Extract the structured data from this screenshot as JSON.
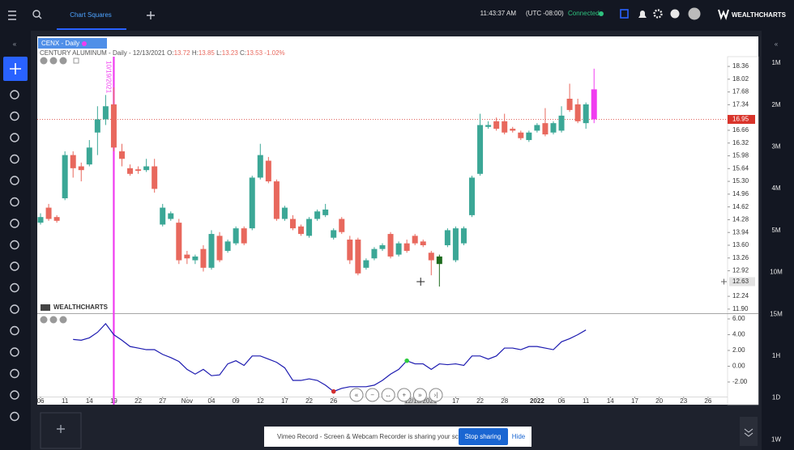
{
  "header": {
    "tab": "Chart Squares",
    "time": "11:43:37 AM",
    "timezone": "(UTC -08:00)",
    "status": "Connected",
    "brand": "WEALTHCHARTS"
  },
  "symbol_tab": "CENX - Daily",
  "info": {
    "name": "CENTURY ALUMINUM - Daily - 12/13/2021",
    "open_label": "O:",
    "open": "13.72",
    "high_label": "H:",
    "high": "13.85",
    "low_label": "L:",
    "low": "13.23",
    "close_label": "C:",
    "close": "13.53",
    "change": "-1.02%"
  },
  "chart": {
    "type": "candlestick",
    "watermark": "WEALTHCHARTS",
    "vertical_marker": {
      "value": 9,
      "label": "10/19/2021",
      "color": "#f03cf0"
    },
    "xlim": [
      -0.4,
      84.4
    ],
    "xticks": [
      {
        "value": 0,
        "label": "06"
      },
      {
        "value": 3,
        "label": "11"
      },
      {
        "value": 6,
        "label": "14"
      },
      {
        "value": 9,
        "label": "19"
      },
      {
        "value": 12,
        "label": "22"
      },
      {
        "value": 15,
        "label": "27"
      },
      {
        "value": 18,
        "label": "Nov"
      },
      {
        "value": 21,
        "label": "04"
      },
      {
        "value": 24,
        "label": "09"
      },
      {
        "value": 27,
        "label": "12"
      },
      {
        "value": 30,
        "label": "17"
      },
      {
        "value": 33,
        "label": "22"
      },
      {
        "value": 36,
        "label": "26"
      },
      {
        "value": 51,
        "label": "17"
      },
      {
        "value": 54,
        "label": "22"
      },
      {
        "value": 57,
        "label": "28"
      },
      {
        "value": 61,
        "label": "2022"
      },
      {
        "value": 64,
        "label": "06"
      },
      {
        "value": 67,
        "label": "11"
      },
      {
        "value": 70,
        "label": "14"
      },
      {
        "value": 73,
        "label": "17"
      },
      {
        "value": 76,
        "label": "20"
      },
      {
        "value": 79,
        "label": "23"
      },
      {
        "value": 82,
        "label": "26"
      }
    ],
    "ylim": [
      11.79,
      18.62
    ],
    "yticks": [
      18.36,
      18.02,
      17.68,
      17.34,
      16.66,
      16.32,
      15.98,
      15.64,
      {
        "value": 15.3,
        "label": "15.30"
      },
      14.96,
      14.62,
      14.28,
      13.94,
      {
        "value": 13.6,
        "label": "13.60"
      },
      13.26,
      12.92,
      12.24,
      {
        "value": 11.9,
        "label": "11.90"
      }
    ],
    "colors": {
      "up": "#3ba796",
      "down": "#e8685d"
    },
    "candles": [
      {
        "o": 14.2,
        "h": 14.45,
        "l": 14.15,
        "c": 14.35
      },
      {
        "o": 14.6,
        "h": 14.7,
        "l": 14.25,
        "c": 14.3
      },
      {
        "o": 14.35,
        "h": 14.4,
        "l": 14.2,
        "c": 14.25
      },
      {
        "o": 14.85,
        "h": 16.1,
        "l": 14.8,
        "c": 16.0
      },
      {
        "o": 16.0,
        "h": 16.1,
        "l": 15.4,
        "c": 15.65
      },
      {
        "o": 15.7,
        "h": 15.8,
        "l": 15.3,
        "c": 15.6
      },
      {
        "o": 15.75,
        "h": 16.4,
        "l": 15.7,
        "c": 16.2
      },
      {
        "o": 16.6,
        "h": 17.3,
        "l": 16.0,
        "c": 16.95
      },
      {
        "o": 16.95,
        "h": 17.6,
        "l": 16.8,
        "c": 17.3
      },
      {
        "o": 17.35,
        "h": 17.8,
        "l": 16.1,
        "c": 16.2
      },
      {
        "o": 16.1,
        "h": 16.3,
        "l": 15.7,
        "c": 15.9
      },
      {
        "o": 15.65,
        "h": 15.75,
        "l": 15.45,
        "c": 15.5
      },
      {
        "o": 15.62,
        "h": 15.7,
        "l": 15.5,
        "c": 15.58
      },
      {
        "o": 15.6,
        "h": 15.9,
        "l": 15.55,
        "c": 15.7
      },
      {
        "o": 15.7,
        "h": 15.9,
        "l": 15.0,
        "c": 15.1
      },
      {
        "o": 14.15,
        "h": 14.7,
        "l": 14.1,
        "c": 14.6
      },
      {
        "o": 14.3,
        "h": 14.5,
        "l": 14.25,
        "c": 14.45
      },
      {
        "o": 14.2,
        "h": 14.3,
        "l": 13.1,
        "c": 13.2
      },
      {
        "o": 13.35,
        "h": 13.45,
        "l": 13.1,
        "c": 13.25
      },
      {
        "o": 13.2,
        "h": 13.35,
        "l": 13.1,
        "c": 13.3
      },
      {
        "o": 13.5,
        "h": 13.6,
        "l": 12.9,
        "c": 13.0
      },
      {
        "o": 13.0,
        "h": 14.0,
        "l": 12.95,
        "c": 13.9
      },
      {
        "o": 13.85,
        "h": 13.95,
        "l": 13.15,
        "c": 13.2
      },
      {
        "o": 13.45,
        "h": 13.75,
        "l": 13.4,
        "c": 13.7
      },
      {
        "o": 13.65,
        "h": 14.1,
        "l": 13.6,
        "c": 14.05
      },
      {
        "o": 14.05,
        "h": 14.1,
        "l": 13.6,
        "c": 13.65
      },
      {
        "o": 14.05,
        "h": 15.45,
        "l": 14.0,
        "c": 15.4
      },
      {
        "o": 15.4,
        "h": 16.3,
        "l": 15.35,
        "c": 16.0
      },
      {
        "o": 15.85,
        "h": 15.95,
        "l": 15.25,
        "c": 15.3
      },
      {
        "o": 15.3,
        "h": 15.35,
        "l": 14.25,
        "c": 14.3
      },
      {
        "o": 14.3,
        "h": 14.65,
        "l": 14.25,
        "c": 14.6
      },
      {
        "o": 14.3,
        "h": 14.4,
        "l": 14.0,
        "c": 14.05
      },
      {
        "o": 14.1,
        "h": 14.15,
        "l": 13.85,
        "c": 13.9
      },
      {
        "o": 13.85,
        "h": 14.35,
        "l": 13.8,
        "c": 14.3
      },
      {
        "o": 14.3,
        "h": 14.55,
        "l": 14.25,
        "c": 14.5
      },
      {
        "o": 14.4,
        "h": 14.7,
        "l": 14.35,
        "c": 14.55
      },
      {
        "o": 13.8,
        "h": 14.05,
        "l": 13.75,
        "c": 14.0
      },
      {
        "o": 14.3,
        "h": 14.35,
        "l": 13.9,
        "c": 13.95
      },
      {
        "o": 13.75,
        "h": 13.85,
        "l": 13.1,
        "c": 13.2
      },
      {
        "o": 13.75,
        "h": 13.8,
        "l": 12.8,
        "c": 12.85
      },
      {
        "o": 13.0,
        "h": 13.25,
        "l": 12.95,
        "c": 13.2
      },
      {
        "o": 13.25,
        "h": 13.55,
        "l": 13.2,
        "c": 13.5
      },
      {
        "o": 13.5,
        "h": 13.65,
        "l": 13.45,
        "c": 13.6
      },
      {
        "o": 13.9,
        "h": 13.95,
        "l": 13.25,
        "c": 13.3
      },
      {
        "o": 13.35,
        "h": 13.7,
        "l": 13.3,
        "c": 13.65
      },
      {
        "o": 13.65,
        "h": 13.75,
        "l": 13.4,
        "c": 13.45
      },
      {
        "o": 13.85,
        "h": 13.9,
        "l": 13.6,
        "c": 13.65
      },
      {
        "o": 13.7,
        "h": 13.75,
        "l": 13.55,
        "c": 13.6
      },
      {
        "o": 13.4,
        "h": 13.45,
        "l": 12.8,
        "c": 13.2
      },
      {
        "o": 13.1,
        "h": 13.35,
        "l": 12.5,
        "c": 13.3,
        "color": "#1e6b1e"
      },
      {
        "o": 13.6,
        "h": 14.05,
        "l": 13.55,
        "c": 14.0
      },
      {
        "o": 13.2,
        "h": 14.1,
        "l": 13.15,
        "c": 14.05
      },
      {
        "o": 13.65,
        "h": 14.1,
        "l": 13.6,
        "c": 14.05
      },
      {
        "o": 14.4,
        "h": 15.45,
        "l": 14.35,
        "c": 15.4
      },
      {
        "o": 15.5,
        "h": 17.1,
        "l": 15.45,
        "c": 16.8
      },
      {
        "o": 16.75,
        "h": 16.9,
        "l": 16.7,
        "c": 16.8
      },
      {
        "o": 16.9,
        "h": 17.0,
        "l": 16.65,
        "c": 16.7
      },
      {
        "o": 16.9,
        "h": 17.1,
        "l": 16.55,
        "c": 16.6
      },
      {
        "o": 16.7,
        "h": 16.75,
        "l": 16.6,
        "c": 16.65
      },
      {
        "o": 16.6,
        "h": 16.65,
        "l": 16.4,
        "c": 16.45
      },
      {
        "o": 16.4,
        "h": 16.65,
        "l": 16.35,
        "c": 16.6
      },
      {
        "o": 16.65,
        "h": 16.85,
        "l": 16.6,
        "c": 16.8
      },
      {
        "o": 16.85,
        "h": 17.25,
        "l": 16.5,
        "c": 16.55
      },
      {
        "o": 16.6,
        "h": 16.9,
        "l": 16.55,
        "c": 16.85
      },
      {
        "o": 16.65,
        "h": 17.3,
        "l": 16.6,
        "c": 17.05
      },
      {
        "o": 17.5,
        "h": 17.9,
        "l": 17.15,
        "c": 17.2
      },
      {
        "o": 17.35,
        "h": 17.5,
        "l": 16.85,
        "c": 16.9
      },
      {
        "o": 16.85,
        "h": 17.4,
        "l": 16.7,
        "c": 17.35
      },
      {
        "o": 17.75,
        "h": 18.3,
        "l": 16.85,
        "c": 16.95,
        "color": "#f03cf0"
      }
    ],
    "last_price": {
      "value": 16.95,
      "color": "#d9342b"
    },
    "crosshair": {
      "x": 46.7,
      "price": 12.63,
      "date": "12/13/2021"
    },
    "indicator": {
      "color": "#1c1ab0",
      "ylim": [
        -3.85,
        6.62
      ],
      "yticks": [
        {
          "value": 6,
          "label": "6.00"
        },
        {
          "value": 4,
          "label": "4.00"
        },
        {
          "value": 2,
          "label": "2.00"
        },
        {
          "value": 0,
          "label": "0.00"
        },
        {
          "value": -2,
          "label": "-2.00"
        }
      ],
      "values": [
        null,
        null,
        null,
        null,
        3.4,
        3.3,
        3.6,
        4.3,
        5.4,
        4.0,
        3.3,
        2.5,
        2.3,
        2.1,
        2.1,
        1.5,
        1.1,
        0.6,
        -0.4,
        -1.0,
        -0.4,
        -1.2,
        -1.1,
        0.3,
        0.7,
        0.1,
        1.3,
        1.3,
        0.9,
        0.5,
        -0.2,
        -1.8,
        -1.8,
        -1.6,
        -1.8,
        -2.4,
        -3.2,
        -2.8,
        -2.6,
        -2.6,
        -2.6,
        -2.4,
        -1.8,
        -1.0,
        -0.4,
        0.7,
        0.3,
        0.3,
        -0.4,
        0.3,
        0.2,
        0.3,
        0.1,
        1.3,
        1.3,
        0.9,
        1.3,
        2.3,
        2.3,
        2.1,
        2.5,
        2.5,
        2.3,
        2.1,
        3.1,
        3.5,
        4.0,
        4.6,
        null
      ],
      "signals": [
        {
          "index": 36,
          "color": "#d32f2f"
        },
        {
          "index": 45,
          "color": "#2ecc40"
        }
      ]
    }
  },
  "timeframes": [
    "1M",
    "2M",
    "3M",
    "4M",
    "5M",
    "10M",
    "15M",
    "1H",
    "1D",
    "1W"
  ],
  "footer": {
    "banner": "Vimeo Record - Screen & Webcam Recorder is sharing your screen.",
    "stop": "Stop sharing",
    "hide": "Hide"
  }
}
